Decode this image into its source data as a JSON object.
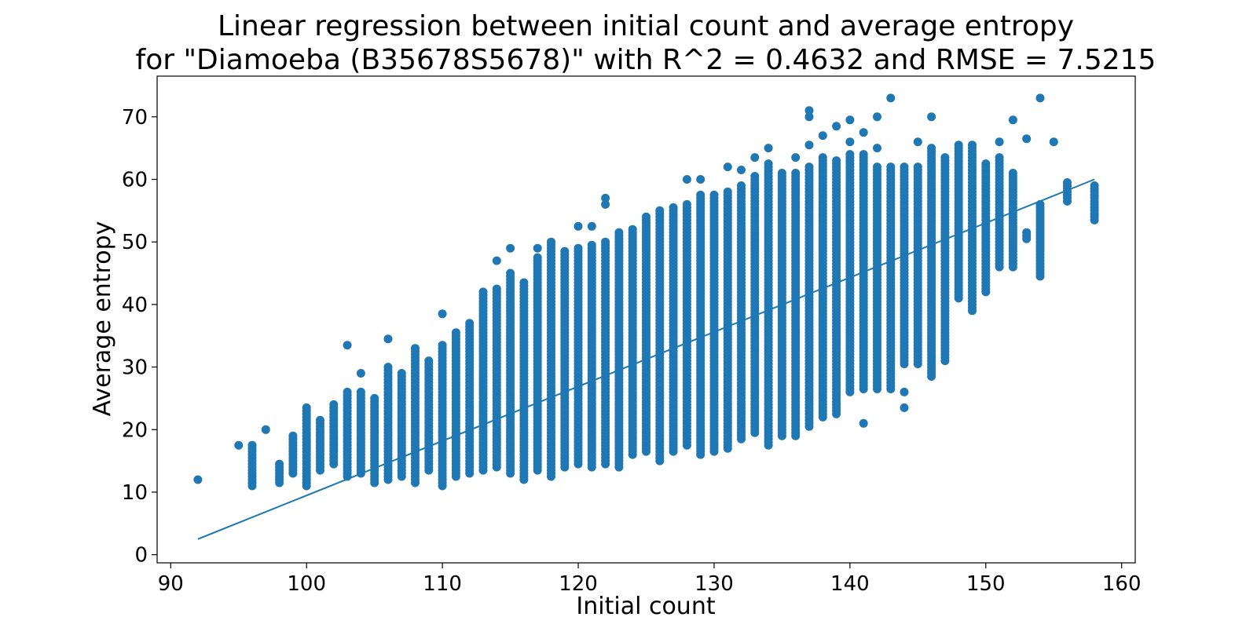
{
  "chart_data": {
    "type": "scatter",
    "title": "Linear regression between initial count and average entropy",
    "subtitle": "for \"Diamoeba (B35678S5678)\" with R^2 = 0.4632 and RMSE = 7.5215",
    "xlabel": "Initial count",
    "ylabel": "Average entropy",
    "xlim": [
      89,
      161
    ],
    "ylim": [
      -1.3,
      76.5
    ],
    "xticks": [
      90,
      100,
      110,
      120,
      130,
      140,
      150,
      160
    ],
    "yticks": [
      0,
      10,
      20,
      30,
      40,
      50,
      60,
      70
    ],
    "grid": false,
    "legend": "none",
    "color": "#1f77b4",
    "regression_line": {
      "x": [
        92,
        158
      ],
      "y": [
        2.5,
        60.0
      ]
    },
    "point_ranges": [
      {
        "x": 92,
        "ymin": 12,
        "ymax": 12
      },
      {
        "x": 95,
        "ymin": 17.5,
        "ymax": 17.5
      },
      {
        "x": 96,
        "ymin": 11,
        "ymax": 17.5
      },
      {
        "x": 97,
        "ymin": 20,
        "ymax": 20
      },
      {
        "x": 98,
        "ymin": 11.5,
        "ymax": 14.5
      },
      {
        "x": 99,
        "ymin": 13,
        "ymax": 19
      },
      {
        "x": 100,
        "ymin": 11,
        "ymax": 23.5
      },
      {
        "x": 101,
        "ymin": 13.5,
        "ymax": 21.5
      },
      {
        "x": 102,
        "ymin": 14.5,
        "ymax": 24
      },
      {
        "x": 103,
        "ymin": 12.5,
        "ymax": 26,
        "outliers": [
          33.5
        ]
      },
      {
        "x": 104,
        "ymin": 13,
        "ymax": 26,
        "outliers": [
          29
        ]
      },
      {
        "x": 105,
        "ymin": 11.5,
        "ymax": 25
      },
      {
        "x": 106,
        "ymin": 12,
        "ymax": 30,
        "outliers": [
          34.5
        ]
      },
      {
        "x": 107,
        "ymin": 12.5,
        "ymax": 29
      },
      {
        "x": 108,
        "ymin": 11.5,
        "ymax": 33
      },
      {
        "x": 109,
        "ymin": 13.5,
        "ymax": 31
      },
      {
        "x": 110,
        "ymin": 11,
        "ymax": 33.5,
        "outliers": [
          38.5
        ]
      },
      {
        "x": 111,
        "ymin": 12.5,
        "ymax": 35.5
      },
      {
        "x": 112,
        "ymin": 13,
        "ymax": 37
      },
      {
        "x": 113,
        "ymin": 13.5,
        "ymax": 42
      },
      {
        "x": 114,
        "ymin": 14,
        "ymax": 42.5,
        "outliers": [
          47
        ]
      },
      {
        "x": 115,
        "ymin": 13,
        "ymax": 45,
        "outliers": [
          49
        ]
      },
      {
        "x": 116,
        "ymin": 12,
        "ymax": 43.5
      },
      {
        "x": 117,
        "ymin": 13.5,
        "ymax": 47.5,
        "outliers": [
          49
        ]
      },
      {
        "x": 118,
        "ymin": 12.5,
        "ymax": 50
      },
      {
        "x": 119,
        "ymin": 14,
        "ymax": 48.5
      },
      {
        "x": 120,
        "ymin": 14.5,
        "ymax": 49,
        "outliers": [
          52.5
        ]
      },
      {
        "x": 121,
        "ymin": 14,
        "ymax": 49.5,
        "outliers": [
          52.5
        ]
      },
      {
        "x": 122,
        "ymin": 14.5,
        "ymax": 50,
        "outliers": [
          56,
          57
        ]
      },
      {
        "x": 123,
        "ymin": 14,
        "ymax": 51.5
      },
      {
        "x": 124,
        "ymin": 16,
        "ymax": 52
      },
      {
        "x": 125,
        "ymin": 16.5,
        "ymax": 54
      },
      {
        "x": 126,
        "ymin": 15,
        "ymax": 55
      },
      {
        "x": 127,
        "ymin": 16.5,
        "ymax": 55.5
      },
      {
        "x": 128,
        "ymin": 17.5,
        "ymax": 56,
        "outliers": [
          60
        ]
      },
      {
        "x": 129,
        "ymin": 16,
        "ymax": 57.5,
        "outliers": [
          60
        ]
      },
      {
        "x": 130,
        "ymin": 16.5,
        "ymax": 57.5
      },
      {
        "x": 131,
        "ymin": 17,
        "ymax": 58,
        "outliers": [
          62
        ]
      },
      {
        "x": 132,
        "ymin": 18.5,
        "ymax": 59,
        "outliers": [
          61.5
        ]
      },
      {
        "x": 133,
        "ymin": 19.5,
        "ymax": 60.5,
        "outliers": [
          63.5
        ]
      },
      {
        "x": 134,
        "ymin": 17.5,
        "ymax": 62.5,
        "outliers": [
          65
        ]
      },
      {
        "x": 135,
        "ymin": 19,
        "ymax": 61
      },
      {
        "x": 136,
        "ymin": 19,
        "ymax": 61,
        "outliers": [
          63.5
        ]
      },
      {
        "x": 137,
        "ymin": 20.5,
        "ymax": 62,
        "outliers": [
          65.5,
          70,
          71
        ]
      },
      {
        "x": 138,
        "ymin": 22,
        "ymax": 63.5,
        "outliers": [
          67
        ]
      },
      {
        "x": 139,
        "ymin": 22.5,
        "ymax": 63,
        "outliers": [
          68.5
        ]
      },
      {
        "x": 140,
        "ymin": 26,
        "ymax": 64,
        "outliers": [
          66,
          69.5
        ]
      },
      {
        "x": 141,
        "ymin": 26.5,
        "ymax": 64,
        "outliers": [
          21,
          67.5
        ]
      },
      {
        "x": 142,
        "ymin": 26.5,
        "ymax": 62,
        "outliers": [
          65,
          70
        ]
      },
      {
        "x": 143,
        "ymin": 26.5,
        "ymax": 62,
        "outliers": [
          73
        ]
      },
      {
        "x": 144,
        "ymin": 30.5,
        "ymax": 62,
        "outliers": [
          23.5,
          26
        ]
      },
      {
        "x": 145,
        "ymin": 30.5,
        "ymax": 62,
        "outliers": [
          66
        ]
      },
      {
        "x": 146,
        "ymin": 28.5,
        "ymax": 65,
        "outliers": [
          70
        ]
      },
      {
        "x": 147,
        "ymin": 31,
        "ymax": 63.5
      },
      {
        "x": 148,
        "ymin": 41,
        "ymax": 65.5
      },
      {
        "x": 149,
        "ymin": 39,
        "ymax": 65.5
      },
      {
        "x": 150,
        "ymin": 42,
        "ymax": 62.5
      },
      {
        "x": 151,
        "ymin": 46,
        "ymax": 63.5,
        "outliers": [
          66
        ]
      },
      {
        "x": 152,
        "ymin": 46,
        "ymax": 61,
        "outliers": [
          69.5
        ]
      },
      {
        "x": 153,
        "ymin": 50.5,
        "ymax": 51.5,
        "outliers": [
          66.5
        ]
      },
      {
        "x": 154,
        "ymin": 44.5,
        "ymax": 56,
        "outliers": [
          73
        ]
      },
      {
        "x": 155,
        "ymin": 66,
        "ymax": 66
      },
      {
        "x": 156,
        "ymin": 56.5,
        "ymax": 59.5
      },
      {
        "x": 158,
        "ymin": 53.5,
        "ymax": 59
      }
    ]
  }
}
